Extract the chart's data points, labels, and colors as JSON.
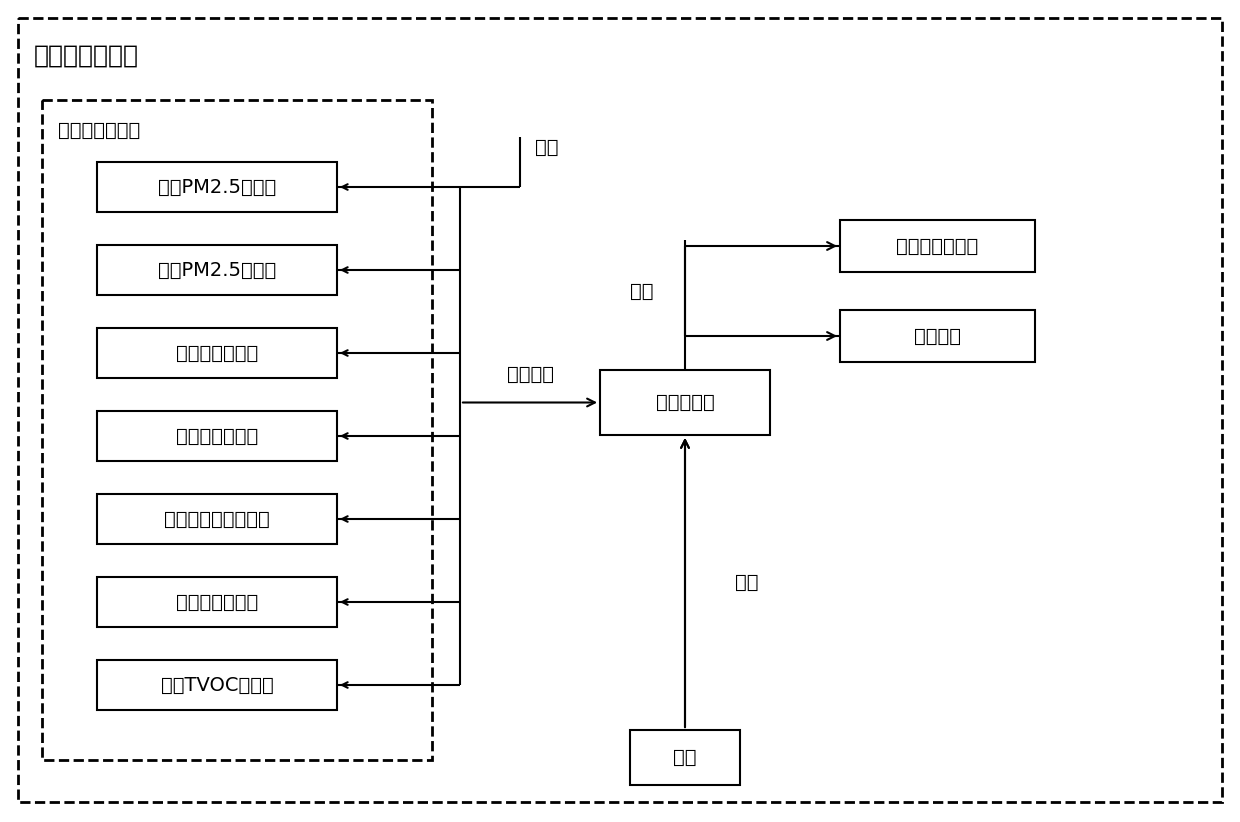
{
  "title": "空气净化器主体",
  "sensor_group_label": "空气检测传感器",
  "sensors": [
    "车外PM2.5传感器",
    "车内PM2.5传感器",
    "车内温度传感器",
    "车内湿度传感器",
    "车内二氧化碳传感器",
    "车内甲醛传感器",
    "车内TVOC传感器"
  ],
  "main_box_label": "主控电路版",
  "power_box_label": "电源",
  "output_boxes": [
    "空气净化器装置",
    "灯光显示"
  ],
  "supply_label_top": "供电",
  "transfer_label": "传输数据",
  "control_label": "控制",
  "supply_label_bottom": "供电",
  "bg_color": "#ffffff",
  "line_color": "#000000",
  "text_color": "#000000",
  "font_size": 14,
  "title_font_size": 18
}
